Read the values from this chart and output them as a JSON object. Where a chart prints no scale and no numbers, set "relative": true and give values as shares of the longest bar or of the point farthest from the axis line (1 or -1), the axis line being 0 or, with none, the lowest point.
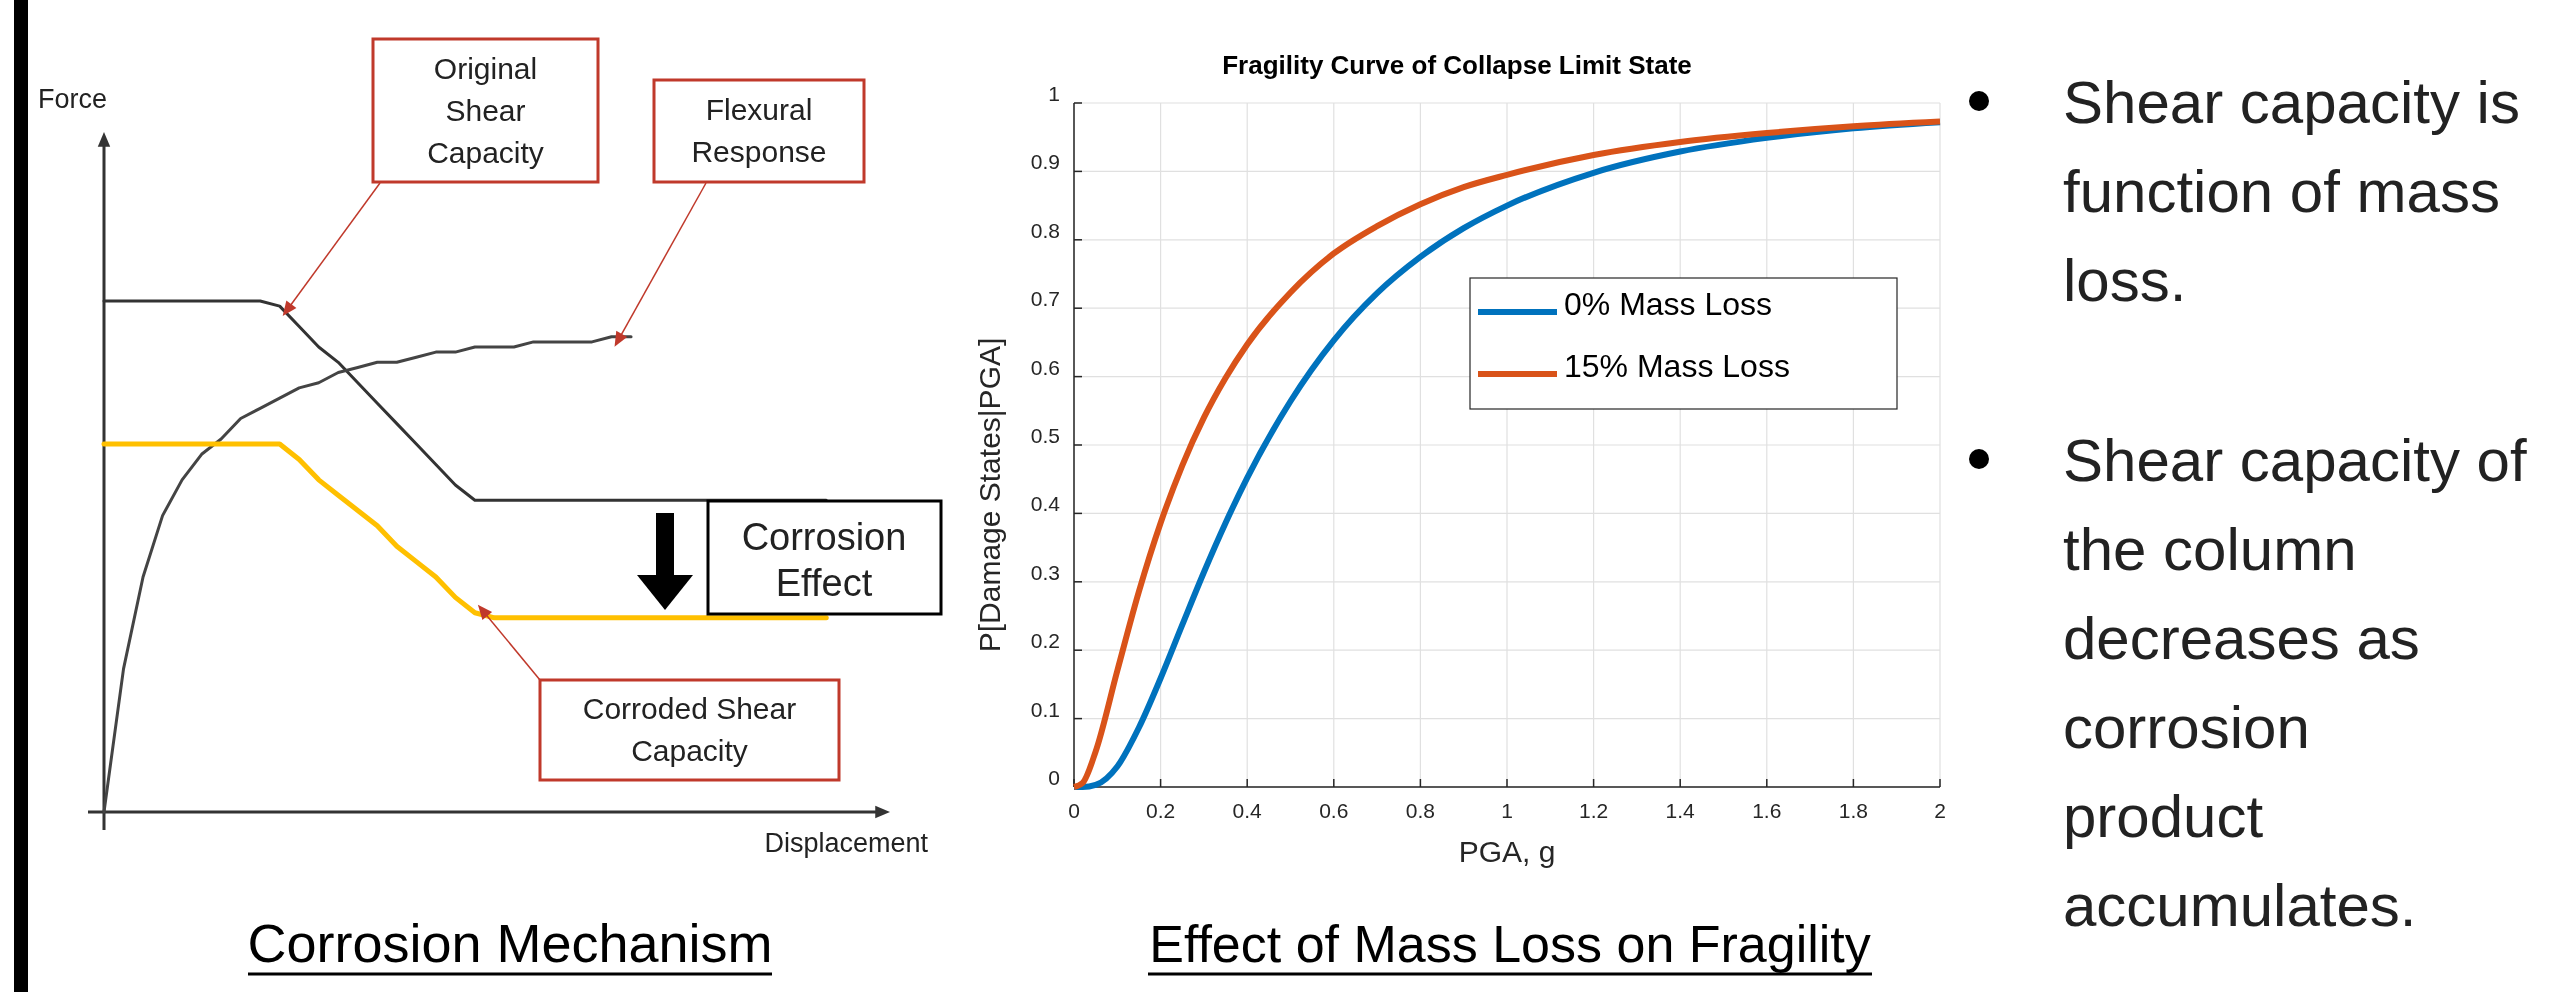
{
  "chart_data": [
    {
      "type": "line",
      "title": "Corrosion Mechanism",
      "xlabel": "Displacement",
      "ylabel": "Force",
      "relative": true,
      "categories": [
        null,
        null,
        null,
        null,
        null,
        null,
        null,
        null,
        null,
        null,
        null,
        null,
        null,
        null,
        null,
        null,
        null,
        null,
        null,
        null,
        null,
        null,
        null,
        null,
        null,
        null,
        null,
        null,
        null,
        null,
        null,
        null,
        null,
        null,
        null,
        null,
        null,
        null
      ],
      "series": [
        {
          "color": "#333333",
          "values": [
            1,
            1,
            1,
            1,
            1,
            1,
            1,
            1,
            1,
            0.99,
            0.95,
            0.91,
            0.88,
            0.84,
            0.8,
            0.76,
            0.72,
            0.68,
            0.64,
            0.61,
            0.61,
            0.61,
            0.61,
            0.61,
            0.61,
            0.61,
            0.61,
            0.61,
            0.61,
            0.61,
            0.61,
            0.61,
            0.61,
            0.61,
            0.61,
            0.61,
            0.61,
            0.61
          ]
        },
        {
          "color": "#444444",
          "values": [
            0,
            0.28,
            0.46,
            0.58,
            0.65,
            0.7,
            0.73,
            0.77,
            0.79,
            0.81,
            0.83,
            0.84,
            0.86,
            0.87,
            0.88,
            0.88,
            0.89,
            0.9,
            0.9,
            0.91,
            0.91,
            0.91,
            0.92,
            0.92,
            0.92,
            0.92,
            0.93,
            0.93,
            null,
            null,
            null,
            null,
            null,
            null,
            null,
            null,
            null,
            null
          ]
        },
        {
          "color": "#ffc000",
          "values": [
            0.72,
            0.72,
            0.72,
            0.72,
            0.72,
            0.72,
            0.72,
            0.72,
            0.72,
            0.72,
            0.69,
            0.65,
            0.62,
            0.59,
            0.56,
            0.52,
            0.49,
            0.46,
            0.42,
            0.39,
            0.38,
            0.38,
            0.38,
            0.38,
            0.38,
            0.38,
            0.38,
            0.38,
            0.38,
            0.38,
            0.38,
            0.38,
            0.38,
            0.38,
            0.38,
            0.38,
            0.38,
            0.38
          ]
        }
      ],
      "annotations": [
        "Original\nShear\nCapacity",
        "Flexural\nResponse",
        "Corroded Shear\nCapacity",
        "Corrosion\nEffect"
      ]
    },
    {
      "type": "line",
      "title": "Fragility Curve of Collapse Limit State",
      "xlabel": "PGA, g",
      "ylabel": "P[Damage States|PGA]",
      "x": [
        0,
        0.02,
        0.05,
        0.1,
        0.15,
        0.2,
        0.25,
        0.3,
        0.35,
        0.4,
        0.5,
        0.6,
        0.7,
        0.8,
        0.9,
        1,
        1.2,
        1.4,
        1.6,
        1.8,
        2
      ],
      "series": [
        {
          "name": "0% Mass Loss",
          "color": "#0072bd",
          "values": [
            0,
            0,
            0.003,
            0.03,
            0.087,
            0.159,
            0.237,
            0.314,
            0.386,
            0.452,
            0.564,
            0.653,
            0.722,
            0.775,
            0.817,
            0.85,
            0.898,
            0.929,
            0.949,
            0.963,
            0.972
          ]
        },
        {
          "name": "15% Mass Loss",
          "color": "#d95319",
          "values": [
            0,
            0.006,
            0.052,
            0.17,
            0.286,
            0.386,
            0.47,
            0.54,
            0.598,
            0.647,
            0.723,
            0.78,
            0.82,
            0.852,
            0.877,
            0.895,
            0.924,
            0.943,
            0.956,
            0.966,
            0.973
          ]
        }
      ],
      "xlim": [
        0,
        2
      ],
      "xticks": [
        0,
        0.2,
        0.4,
        0.6,
        0.8,
        1,
        1.2,
        1.4,
        1.6,
        1.8,
        2
      ],
      "ylim": [
        0,
        1
      ],
      "yticks": [
        0,
        0.1,
        0.2,
        0.3,
        0.4,
        0.5,
        0.6,
        0.7,
        0.8,
        0.9,
        1
      ],
      "grid": true,
      "legend": "right",
      "annotations": [
        "Effect of Mass Loss on Fragility"
      ]
    },
    {
      "type": "other",
      "annotations": [
        "Shear capacity is\nfunction of mass\nloss.",
        "Shear capacity of\nthe column\ndecreases as\ncorrosion\nproduct\naccumulates."
      ]
    }
  ]
}
